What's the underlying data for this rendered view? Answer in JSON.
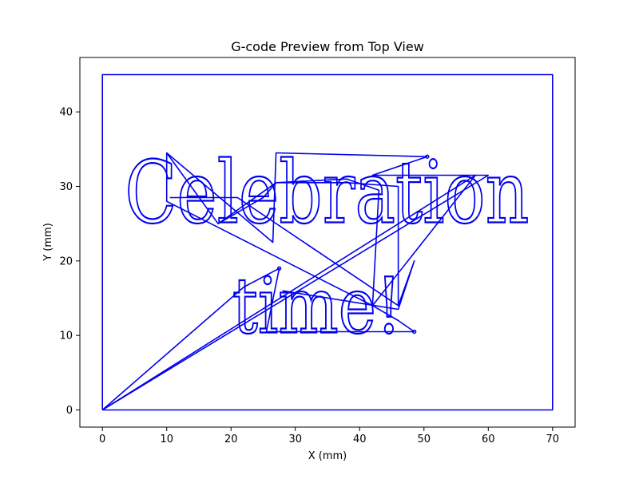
{
  "chart_data": {
    "type": "line",
    "title": "G-code Preview from Top View",
    "xlabel": "X (mm)",
    "ylabel": "Y (mm)",
    "xlim": [
      -3.5,
      73.5
    ],
    "ylim": [
      -2.3,
      47.3
    ],
    "xticks": [
      0,
      10,
      20,
      30,
      40,
      50,
      60,
      70
    ],
    "yticks": [
      0,
      10,
      20,
      30,
      40
    ],
    "grid": false,
    "color": "#0000ee",
    "series": [
      {
        "kind": "border",
        "x": [
          0,
          70,
          70,
          0,
          0
        ],
        "y": [
          0,
          0,
          45,
          45,
          0
        ]
      },
      {
        "kind": "travel",
        "x": [
          0,
          22,
          27.5,
          27.5,
          25.5,
          48.5,
          48.5,
          46,
          42,
          10,
          10,
          26.5,
          27,
          50.5,
          50.5,
          42,
          58,
          60,
          0
        ],
        "y": [
          0,
          16.5,
          19,
          19,
          10.5,
          10.5,
          10.5,
          12,
          14,
          28,
          34.5,
          22.5,
          34.5,
          34,
          34,
          31.5,
          31.5,
          31.5,
          0
        ]
      },
      {
        "kind": "travel",
        "x": [
          10,
          18,
          27,
          38,
          43,
          42,
          53,
          58,
          0
        ],
        "y": [
          34.5,
          25,
          30.5,
          31,
          29.5,
          14,
          26,
          31.5,
          0
        ]
      },
      {
        "kind": "travel",
        "x": [
          18,
          25,
          27,
          38,
          46,
          46
        ],
        "y": [
          25,
          28.5,
          30.5,
          30.5,
          30,
          14
        ]
      },
      {
        "kind": "travel",
        "x": [
          10.5,
          21,
          46,
          48.5,
          46,
          28
        ],
        "y": [
          28.5,
          28.5,
          14,
          20,
          13.5,
          16
        ]
      }
    ],
    "annotations": [
      {
        "text": "Celebration",
        "x": 3.5,
        "y": 25.2
      },
      {
        "text": "time!",
        "x": 20.2,
        "y": 10.4
      }
    ]
  }
}
